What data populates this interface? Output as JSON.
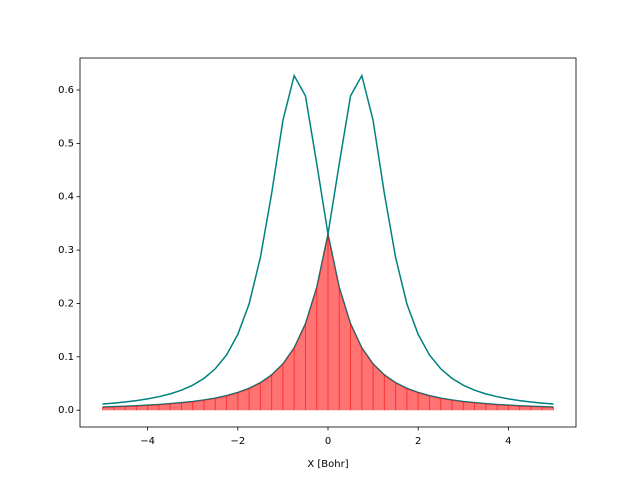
{
  "chart_data": {
    "type": "line",
    "xlabel": "X [Bohr]",
    "x": [
      -5,
      -4.75,
      -4.5,
      -4.25,
      -4,
      -3.75,
      -3.5,
      -3.25,
      -3,
      -2.75,
      -2.5,
      -2.25,
      -2,
      -1.75,
      -1.5,
      -1.25,
      -1,
      -0.75,
      -0.5,
      -0.25,
      0,
      0.25,
      0.5,
      0.75,
      1,
      1.25,
      1.5,
      1.75,
      2,
      2.25,
      2.5,
      2.75,
      3,
      3.25,
      3.5,
      3.75,
      4,
      4.25,
      4.5,
      4.75,
      5
    ],
    "series": [
      {
        "color": "#008080",
        "values": [
          0.0116,
          0.0133,
          0.0154,
          0.018,
          0.0212,
          0.0253,
          0.0306,
          0.0375,
          0.0469,
          0.0597,
          0.0776,
          0.1035,
          0.142,
          0.199,
          0.286,
          0.406,
          0.543,
          0.627,
          0.589,
          0.462,
          0.33,
          0.23,
          0.162,
          0.117,
          0.0868,
          0.0661,
          0.0515,
          0.041,
          0.0332,
          0.0273,
          0.0227,
          0.0192,
          0.0163,
          0.0141,
          0.0122,
          0.0107,
          0.0094,
          0.0083,
          0.0074,
          0.0067,
          0.006
        ]
      },
      {
        "color": "#008080",
        "values": [
          0.006,
          0.0067,
          0.0074,
          0.0083,
          0.0094,
          0.0107,
          0.0122,
          0.0141,
          0.0163,
          0.0192,
          0.0227,
          0.0273,
          0.0332,
          0.041,
          0.0515,
          0.0661,
          0.0868,
          0.117,
          0.162,
          0.23,
          0.33,
          0.462,
          0.589,
          0.627,
          0.543,
          0.406,
          0.286,
          0.199,
          0.142,
          0.1035,
          0.0776,
          0.0597,
          0.0469,
          0.0375,
          0.0306,
          0.0253,
          0.0212,
          0.018,
          0.0154,
          0.0133,
          0.0116
        ]
      },
      {
        "color": "#ff0000",
        "fill": true,
        "alpha": 0.55,
        "values": [
          0.006,
          0.0067,
          0.0074,
          0.0083,
          0.0094,
          0.0107,
          0.0122,
          0.0141,
          0.0163,
          0.0192,
          0.0227,
          0.0273,
          0.0332,
          0.041,
          0.0515,
          0.0661,
          0.0868,
          0.117,
          0.162,
          0.23,
          0.33,
          0.23,
          0.162,
          0.117,
          0.0868,
          0.0661,
          0.0515,
          0.041,
          0.0332,
          0.0273,
          0.0227,
          0.0192,
          0.0163,
          0.0141,
          0.0122,
          0.0107,
          0.0094,
          0.0083,
          0.0074,
          0.0067,
          0.006
        ]
      }
    ],
    "xlim": [
      -5.5,
      5.5
    ],
    "xticks": [
      {
        "value": -4,
        "label": "−4"
      },
      {
        "value": -2,
        "label": "−2"
      },
      {
        "value": 0,
        "label": "0"
      },
      2,
      4
    ],
    "ylim": [
      -0.0315,
      0.66
    ],
    "yticks": [
      {
        "value": 0,
        "label": "0.0"
      },
      0.1,
      0.2,
      0.3,
      0.4,
      0.5,
      0.6
    ],
    "grid": false
  }
}
